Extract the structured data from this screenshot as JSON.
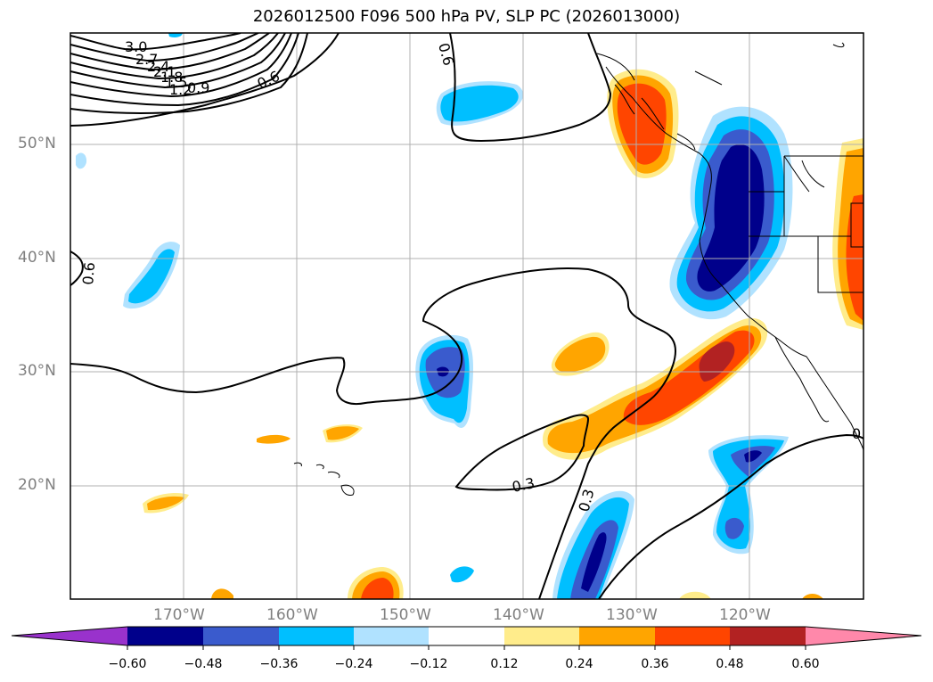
{
  "title": "2026012500 F096 500 hPa PV, SLP PC (2026013000)",
  "lat_labels": [
    "50°N",
    "40°N",
    "30°N",
    "20°N"
  ],
  "lon_labels": [
    "170°W",
    "160°W",
    "150°W",
    "140°W",
    "130°W",
    "120°W"
  ],
  "contour_labels": [
    "3.0",
    "2.7",
    "2.4",
    "2.1",
    "1.8",
    "1.5",
    "1.2",
    "0.9",
    "0.6",
    "0.6",
    "0.6",
    "0.3",
    "0.3",
    "0"
  ],
  "colorbar": {
    "ticks": [
      "−0.60",
      "−0.48",
      "−0.36",
      "−0.24",
      "−0.12",
      "0.12",
      "0.24",
      "0.36",
      "0.48",
      "0.60"
    ],
    "colors": [
      "#9932cc",
      "#00008b",
      "#3a5bcd",
      "#00bfff",
      "#b0e2ff",
      "#ffffff",
      "#ffec8b",
      "#ffa500",
      "#ff4500",
      "#b22222",
      "#ff88aa"
    ]
  },
  "gridlines": true
}
